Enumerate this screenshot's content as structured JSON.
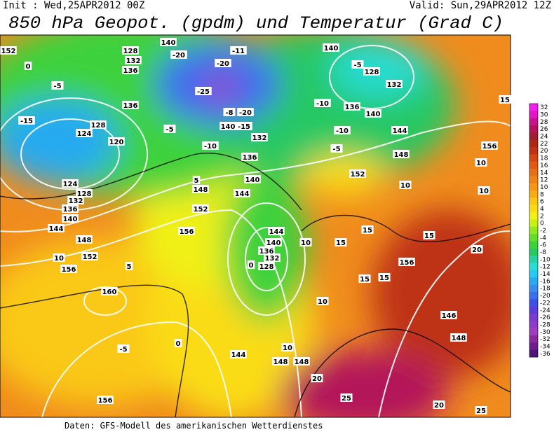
{
  "header": {
    "init": "Init : Wed,25APR2012 00Z",
    "valid": "Valid: Sun,29APR2012 12Z",
    "title": "850 hPa Geopot. (gpdm) und Temperatur (Grad C)"
  },
  "contour_labels": [
    "152",
    "128",
    "132",
    "136",
    "140",
    "-20",
    "-25",
    "-20",
    "-11",
    "140",
    "-5",
    "128",
    "132",
    "-5",
    "0",
    "-15",
    "124",
    "128",
    "120",
    "136",
    "-5",
    "-10",
    "-8",
    "-20",
    "140",
    "-15",
    "132",
    "136",
    "-10",
    "136",
    "140",
    "144",
    "-10",
    "-5",
    "148",
    "156",
    "10",
    "152",
    "10",
    "140",
    "144",
    "148",
    "5",
    "152",
    "156",
    "124",
    "128",
    "132",
    "136",
    "140",
    "144",
    "148",
    "152",
    "156",
    "10",
    "5",
    "160",
    "15",
    "15",
    "20",
    "156",
    "15",
    "15",
    "10",
    "10",
    "148",
    "148",
    "144",
    "156",
    "20",
    "25",
    "20",
    "25",
    "148",
    "146",
    "15",
    "0",
    "-5",
    "0",
    "128",
    "132",
    "136",
    "140",
    "144",
    "10",
    "10",
    "15"
  ],
  "legend": {
    "labels": [
      32,
      30,
      28,
      26,
      24,
      22,
      20,
      18,
      16,
      14,
      12,
      10,
      8,
      6,
      4,
      2,
      0,
      -2,
      -4,
      -6,
      -8,
      -10,
      -12,
      -14,
      -16,
      -18,
      -20,
      -22,
      -24,
      -26,
      -28,
      -30,
      -32,
      -34,
      -36
    ],
    "colors": [
      "#f01ef0",
      "#e614c8",
      "#c8148c",
      "#b4145a",
      "#a01e32",
      "#aa2814",
      "#be3214",
      "#d24614",
      "#e15a14",
      "#e66e14",
      "#f08214",
      "#f59614",
      "#faaa14",
      "#fac814",
      "#fadc14",
      "#f0f014",
      "#c8f014",
      "#96e61e",
      "#64dc28",
      "#3cd23c",
      "#28c864",
      "#28d2a0",
      "#28dcd2",
      "#28c8f0",
      "#28aaf0",
      "#3c8cf0",
      "#3c6ef0",
      "#3c50e6",
      "#5a3cdc",
      "#783cd2",
      "#8c3cc8",
      "#a03cbe",
      "#8c28a0",
      "#6e1e8c",
      "#501478"
    ]
  },
  "footer": "Daten: GFS-Modell des amerikanischen Wetterdienstes"
}
